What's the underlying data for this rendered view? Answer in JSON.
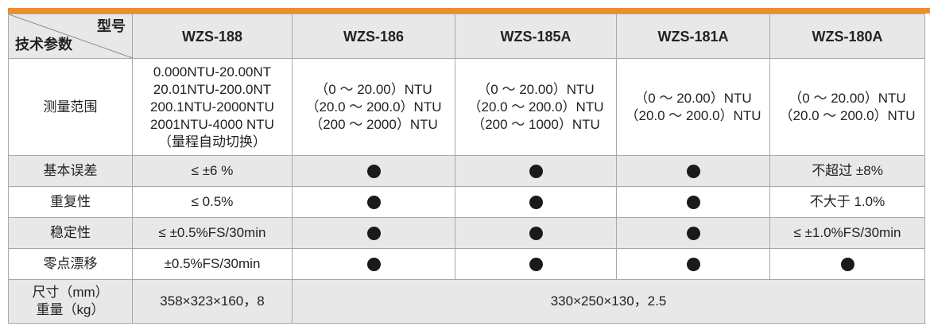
{
  "header": {
    "corner_top": "型号",
    "corner_bottom": "技术参数",
    "models": [
      "WZS-188",
      "WZS-186",
      "WZS-185A",
      "WZS-181A",
      "WZS-180A"
    ]
  },
  "rows": {
    "range": {
      "label": "测量范围",
      "wzs188": [
        "0.000NTU-20.00NT",
        "20.01NTU-200.0NT",
        "200.1NTU-2000NTU",
        "2001NTU-4000 NTU",
        "（量程自动切换）"
      ],
      "wzs186": [
        "（0 ～ 20.00）NTU",
        "（20.0 ～ 200.0）NTU",
        "（200 ～ 2000）NTU"
      ],
      "wzs185a": [
        "（0 ～ 20.00）NTU",
        "（20.0 ～ 200.0）NTU",
        "（200 ～ 1000）NTU"
      ],
      "wzs181a": [
        "（0 ～ 20.00）NTU",
        "（20.0 ～ 200.0）NTU"
      ],
      "wzs180a": [
        "（0 ～ 20.00）NTU",
        "（20.0 ～ 200.0）NTU"
      ]
    },
    "error": {
      "label": "基本误差",
      "wzs188": "≤ ±6 %",
      "wzs180a": "不超过 ±8%"
    },
    "repeat": {
      "label": "重复性",
      "wzs188": "≤ 0.5%",
      "wzs180a": "不大于 1.0%"
    },
    "stability": {
      "label": "稳定性",
      "wzs188": "≤ ±0.5%FS/30min",
      "wzs180a": "≤ ±1.0%FS/30min"
    },
    "drift": {
      "label": "零点漂移",
      "wzs188": "±0.5%FS/30min"
    },
    "size": {
      "label_1": "尺寸（mm）",
      "label_2": "重量（kg）",
      "wzs188": "358×323×160，8",
      "others": "330×250×130，2.5"
    }
  },
  "dot_meaning": "same-as-left",
  "colors": {
    "accent": "#f28c28",
    "header_bg": "#e8e8e8",
    "border": "#a9a9a9"
  }
}
